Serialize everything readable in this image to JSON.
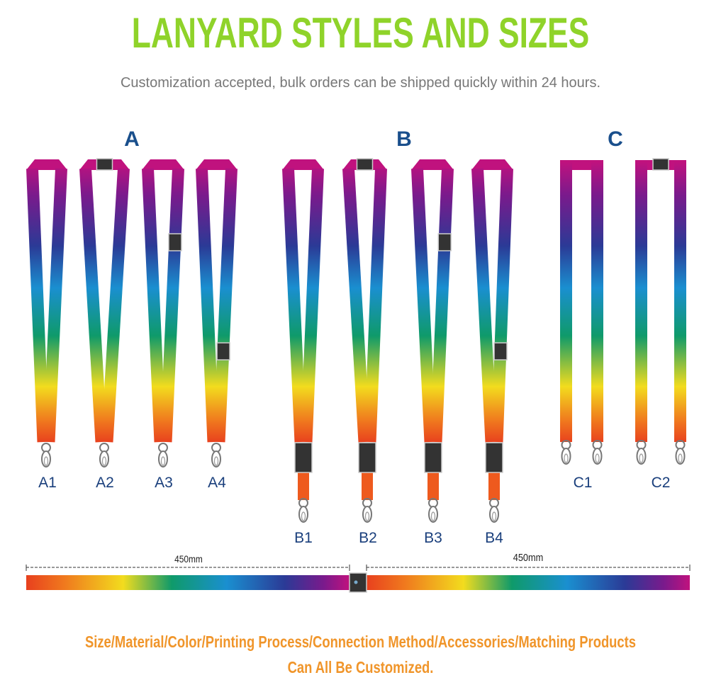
{
  "header": {
    "title": "LANYARD STYLES AND SIZES",
    "subtitle": "Customization accepted, bulk orders can be shipped quickly within 24 hours."
  },
  "colors": {
    "title": "#8fd32a",
    "group_label": "#1a4f8c",
    "footer": "#f0952a",
    "gradient": [
      "#c0127e",
      "#7a1a8c",
      "#2b3a96",
      "#1a8fd0",
      "#0f9a6a",
      "#f2dc1e",
      "#f07a1e",
      "#e8401e"
    ]
  },
  "groups": [
    {
      "label": "A",
      "styles": [
        {
          "label": "A1",
          "type": "v",
          "top_buckle": false,
          "side_buckle": null,
          "breakaway": false
        },
        {
          "label": "A2",
          "type": "v",
          "top_buckle": true,
          "side_buckle": null,
          "breakaway": false
        },
        {
          "label": "A3",
          "type": "v",
          "top_buckle": false,
          "side_buckle": "upper",
          "breakaway": false
        },
        {
          "label": "A4",
          "type": "v",
          "top_buckle": false,
          "side_buckle": "lower",
          "breakaway": false
        }
      ]
    },
    {
      "label": "B",
      "styles": [
        {
          "label": "B1",
          "type": "v",
          "top_buckle": false,
          "side_buckle": null,
          "breakaway": true
        },
        {
          "label": "B2",
          "type": "v",
          "top_buckle": true,
          "side_buckle": null,
          "breakaway": true
        },
        {
          "label": "B3",
          "type": "v",
          "top_buckle": false,
          "side_buckle": "upper",
          "breakaway": true
        },
        {
          "label": "B4",
          "type": "v",
          "top_buckle": false,
          "side_buckle": "lower",
          "breakaway": true
        }
      ]
    },
    {
      "label": "C",
      "styles": [
        {
          "label": "C1",
          "type": "parallel",
          "top_buckle": false
        },
        {
          "label": "C2",
          "type": "parallel",
          "top_buckle": true
        }
      ]
    }
  ],
  "dimensions": {
    "left": "450mm",
    "right": "450mm"
  },
  "footer": {
    "line1": "Size/Material/Color/Printing Process/Connection Method/Accessories/Matching Products",
    "line2": "Can All Be Customized."
  }
}
